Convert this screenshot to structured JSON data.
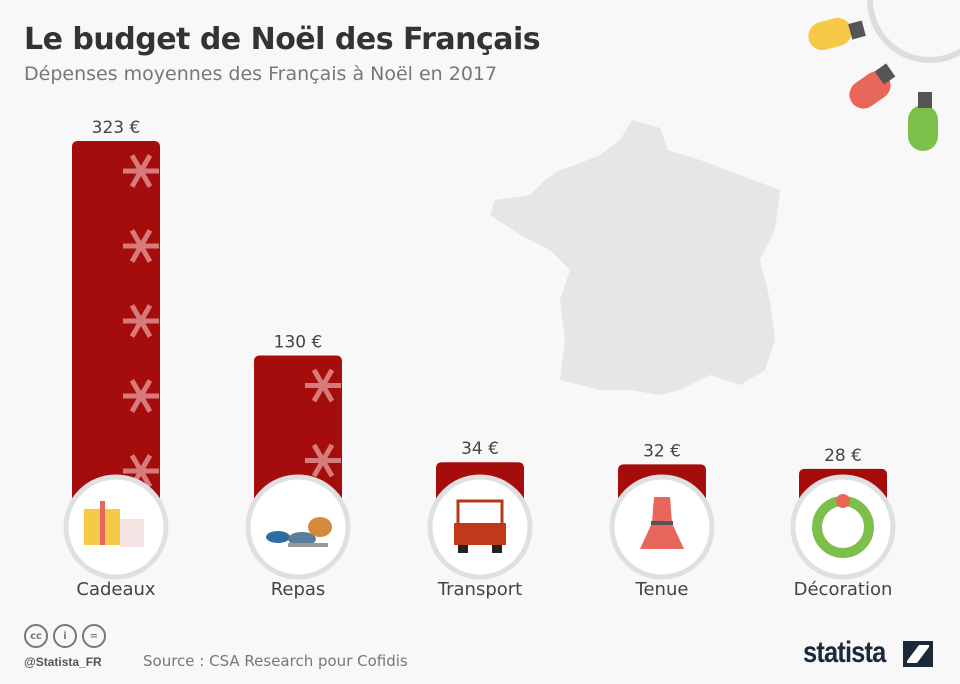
{
  "title": "Le budget de Noël des Français",
  "subtitle": "Dépenses moyennes des Français à Noël en 2017",
  "chart_data": {
    "type": "bar",
    "title": "Le budget de Noël des Français",
    "subtitle": "Dépenses moyennes des Français à Noël en 2017",
    "categories": [
      "Cadeaux",
      "Repas",
      "Transport",
      "Tenue",
      "Décoration"
    ],
    "values": [
      323,
      130,
      34,
      32,
      28
    ],
    "value_labels": [
      "323 €",
      "130 €",
      "34 €",
      "32 €",
      "28 €"
    ],
    "icons": [
      "gift-icon",
      "meal-icon",
      "car-icon",
      "dress-icon",
      "wreath-icon"
    ],
    "unit": "€",
    "bar_color": "#a50d0d",
    "grid": false
  },
  "footer": {
    "handle": "@Statista_FR",
    "source": "Source : CSA Research pour Cofidis",
    "brand": "statista",
    "license_icons": [
      "cc-icon",
      "by-icon",
      "nd-icon"
    ]
  }
}
